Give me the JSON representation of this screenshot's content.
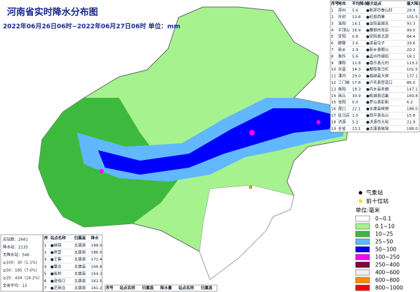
{
  "header": {
    "title": "河南省实时降水分布图",
    "subtitle": "2022年06月26日06时~2022年06月27日06时 单位：mm"
  },
  "city_table": {
    "columns": [
      "序号",
      "地市",
      "平均降水",
      "最大站点",
      "最大降水"
    ],
    "rows": [
      [
        "1",
        "郑州",
        "5.6",
        "●新郑市泰山村",
        "28.9"
      ],
      [
        "2",
        "开封",
        "13.8",
        "●杞县西寨",
        "101.5"
      ],
      [
        "3",
        "洛阳",
        "14.1",
        "●汝阳县城关",
        "93.3"
      ],
      [
        "4",
        "平顶山",
        "16.9",
        "●舞钢市尚店",
        "99.0"
      ],
      [
        "5",
        "安阳",
        "0.8",
        "●安阳县北郭",
        "84.4"
      ],
      [
        "6",
        "鹤壁",
        "3.6",
        "●浚县屯子",
        "39.6"
      ],
      [
        "7",
        "新乡",
        "2.9",
        "●新乡县朗公",
        "20.2"
      ],
      [
        "8",
        "焦作",
        "5.6",
        "●孟州市城伯",
        "18.1"
      ],
      [
        "9",
        "濮阳",
        "11.8",
        "●南乐县元村",
        "113.2"
      ],
      [
        "10",
        "许昌",
        "14.3",
        "●鄢陵县马栏",
        "101.5"
      ],
      [
        "11",
        "漯河",
        "29.0",
        "●临颍县大郭",
        "137.1"
      ],
      [
        "12",
        "三门峡",
        "17.8",
        "●卢氏县官道口",
        "86.0"
      ],
      [
        "13",
        "南阳",
        "18.3",
        "●内乡县赤眉",
        "147.1"
      ],
      [
        "14",
        "商丘",
        "30.9",
        "●柘城县远襄",
        "169.8"
      ],
      [
        "15",
        "信阳",
        "0.0",
        "●罗山县彭新",
        "6.2"
      ],
      [
        "16",
        "周口",
        "22.1",
        "●太康县峡锦",
        "188.0"
      ],
      [
        "17",
        "驻马店",
        "1.0",
        "●西平县出山",
        "15.8"
      ],
      [
        "18",
        "济源",
        "5.2",
        "●济源市大峪",
        "21.9"
      ],
      [
        "19",
        "全省",
        "13.1",
        "●太康县峡锦",
        "188.0"
      ]
    ]
  },
  "stats": [
    "总站数：2681",
    "降水站：2135",
    "无降水站：546",
    "≥100：30（1.1%）",
    "≥50：185（7.0%）",
    "≥25：434（16.2%）",
    "全省平均：13"
  ],
  "top_table": {
    "columns": [
      "序",
      "站点名称",
      "归属县",
      "降水"
    ],
    "rows": [
      [
        "1",
        "●峡锦",
        "太康县",
        "188.0"
      ],
      [
        "2",
        "●常营",
        "太康县",
        "186.5"
      ],
      [
        "3",
        "●王集",
        "太康县",
        "171.4"
      ],
      [
        "4",
        "●曹庄",
        "太康县",
        "166.8"
      ],
      [
        "5",
        "●板桥",
        "太康县",
        "164.3"
      ],
      [
        "6",
        "●逊母口",
        "太康县",
        "162.5"
      ],
      [
        "7",
        "●芝麻洼",
        "太康县",
        "161.2"
      ]
    ]
  },
  "bottom_table": {
    "columns": [
      "序号",
      "站点名称",
      "归属县",
      "降水量",
      "站点名称",
      "归属县"
    ]
  },
  "station_legend": [
    {
      "label": "气象站",
      "color": "#000000"
    },
    {
      "label": "前十位站",
      "color": "#ffd700"
    }
  ],
  "legend": {
    "title": "单位:毫米",
    "items": [
      {
        "label": "0~0.1",
        "color": "#ffffff"
      },
      {
        "label": "0.1~10",
        "color": "#a6f28f"
      },
      {
        "label": "10~25",
        "color": "#3dba3d"
      },
      {
        "label": "25~50",
        "color": "#61b8ff"
      },
      {
        "label": "50~100",
        "color": "#0000fe"
      },
      {
        "label": "100~250",
        "color": "#fa00fa"
      },
      {
        "label": "250~400",
        "color": "#800040"
      },
      {
        "label": "400~600",
        "color": "#f0f0f0"
      },
      {
        "label": "600~800",
        "color": "#ff8c00"
      },
      {
        "label": "800~1000",
        "color": "#ff0000"
      }
    ]
  }
}
